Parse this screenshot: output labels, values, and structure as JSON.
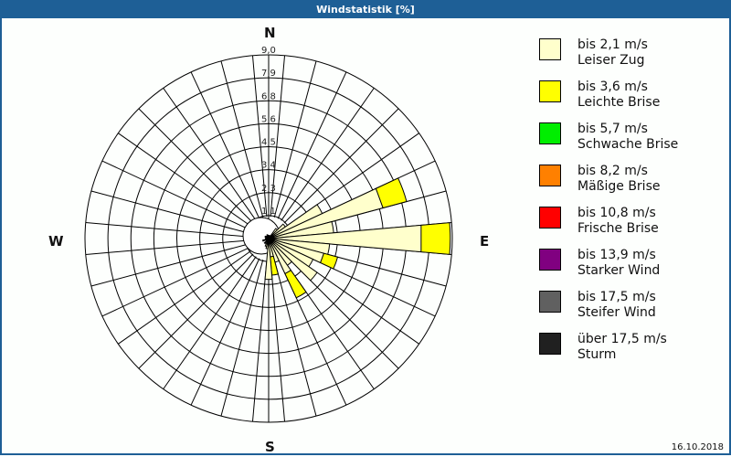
{
  "header": {
    "title": "Windstatistik [%]"
  },
  "footer": {
    "date": "16.10.2018"
  },
  "compass": {
    "n": "N",
    "e": "E",
    "s": "S",
    "w": "W"
  },
  "legend": [
    {
      "range": "bis 2,1 m/s",
      "name": "Leiser Zug",
      "color": "#ffffcc"
    },
    {
      "range": "bis 3,6 m/s",
      "name": "Leichte Brise",
      "color": "#ffff00"
    },
    {
      "range": "bis 5,7 m/s",
      "name": "Schwache Brise",
      "color": "#00ee00"
    },
    {
      "range": "bis 8,2 m/s",
      "name": "Mäßige Brise",
      "color": "#ff8000"
    },
    {
      "range": "bis 10,8 m/s",
      "name": "Frische Brise",
      "color": "#ff0000"
    },
    {
      "range": "bis 13,9 m/s",
      "name": "Starker Wind",
      "color": "#800080"
    },
    {
      "range": "bis 17,5 m/s",
      "name": "Steifer Wind",
      "color": "#606060"
    },
    {
      "range": "über 17,5 m/s",
      "name": "Sturm",
      "color": "#202020"
    }
  ],
  "chart_data": {
    "type": "polar-stacked-bar",
    "title": "Windstatistik [%]",
    "radial_ticks": [
      "1,1",
      "2,3",
      "3,4",
      "4,5",
      "5,6",
      "6,8",
      "7,9",
      "9,0"
    ],
    "radial_range": [
      0,
      9.0
    ],
    "sector_width_deg": 10,
    "series_names": [
      "bis 2,1 m/s",
      "bis 3,6 m/s",
      "bis 5,7 m/s",
      "bis 8,2 m/s",
      "bis 10,8 m/s",
      "bis 13,9 m/s",
      "bis 17,5 m/s",
      "über 17,5 m/s"
    ],
    "directions": [
      {
        "deg": 40,
        "values": [
          0.6,
          0
        ]
      },
      {
        "deg": 50,
        "values": [
          1.0,
          0
        ]
      },
      {
        "deg": 60,
        "values": [
          2.9,
          0
        ]
      },
      {
        "deg": 70,
        "values": [
          5.8,
          1.2
        ]
      },
      {
        "deg": 80,
        "values": [
          3.2,
          0
        ]
      },
      {
        "deg": 90,
        "values": [
          7.5,
          1.4
        ]
      },
      {
        "deg": 100,
        "values": [
          3.0,
          0
        ]
      },
      {
        "deg": 110,
        "values": [
          2.8,
          0.7
        ]
      },
      {
        "deg": 120,
        "values": [
          2.4,
          0
        ]
      },
      {
        "deg": 130,
        "values": [
          2.9,
          0
        ]
      },
      {
        "deg": 140,
        "values": [
          1.6,
          0
        ]
      },
      {
        "deg": 150,
        "values": [
          1.9,
          1.3
        ]
      },
      {
        "deg": 160,
        "values": [
          1.2,
          0
        ]
      },
      {
        "deg": 170,
        "values": [
          0.9,
          0.9
        ]
      },
      {
        "deg": 180,
        "values": [
          2.0,
          0
        ]
      },
      {
        "deg": 190,
        "values": [
          0.5,
          0
        ]
      },
      {
        "deg": 200,
        "values": [
          0.4,
          0
        ]
      },
      {
        "deg": 220,
        "values": [
          0.3,
          0
        ]
      },
      {
        "deg": 250,
        "values": [
          0.3,
          0
        ]
      },
      {
        "deg": 300,
        "values": [
          0.2,
          0
        ]
      },
      {
        "deg": 340,
        "values": [
          0.2,
          0
        ]
      }
    ]
  }
}
